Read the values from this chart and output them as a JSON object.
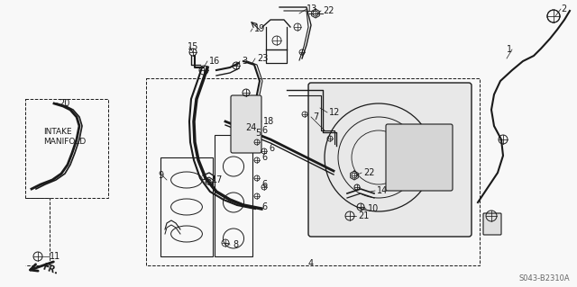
{
  "bg_color": "#f5f5f5",
  "line_color": "#1a1a1a",
  "fig_width": 6.4,
  "fig_height": 3.19,
  "dpi": 100,
  "diagram_code": "S043-B2310A",
  "intake_manifold": "INTAKE\nMANIFOLD",
  "fr_text": "FR."
}
